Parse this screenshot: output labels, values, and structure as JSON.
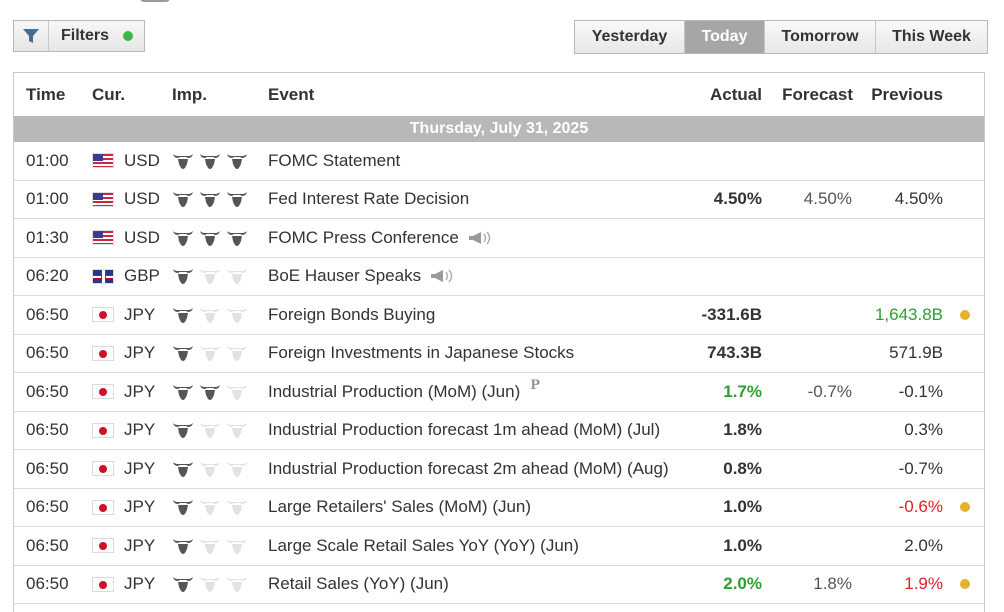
{
  "filters": {
    "label": "Filters",
    "active_color": "#3cb84a"
  },
  "tabs": [
    {
      "label": "Yesterday",
      "active": false
    },
    {
      "label": "Today",
      "active": true
    },
    {
      "label": "Tomorrow",
      "active": false
    },
    {
      "label": "This Week",
      "active": false
    }
  ],
  "columns": {
    "time": "Time",
    "currency": "Cur.",
    "importance": "Imp.",
    "event": "Event",
    "actual": "Actual",
    "forecast": "Forecast",
    "previous": "Previous"
  },
  "date_label": "Thursday, July 31, 2025",
  "colors": {
    "positive": "#2ca02c",
    "negative": "#e0202a",
    "alert_dot": "#e6b22e",
    "header_bar": "#b8b8b8"
  },
  "events": [
    {
      "time": "01:00",
      "currency": "USD",
      "flag": "us",
      "importance": 3,
      "event": "FOMC Statement",
      "icon": "",
      "actual": "",
      "actual_color": "",
      "forecast": "",
      "previous": "",
      "previous_color": "",
      "alert": false
    },
    {
      "time": "01:00",
      "currency": "USD",
      "flag": "us",
      "importance": 3,
      "event": "Fed Interest Rate Decision",
      "icon": "",
      "actual": "4.50%",
      "actual_color": "",
      "forecast": "4.50%",
      "previous": "4.50%",
      "previous_color": "",
      "alert": false
    },
    {
      "time": "01:30",
      "currency": "USD",
      "flag": "us",
      "importance": 3,
      "event": "FOMC Press Conference",
      "icon": "speaker-icon",
      "actual": "",
      "actual_color": "",
      "forecast": "",
      "previous": "",
      "previous_color": "",
      "alert": false
    },
    {
      "time": "06:20",
      "currency": "GBP",
      "flag": "gb",
      "importance": 1,
      "event": "BoE Hauser Speaks",
      "icon": "speaker-icon",
      "actual": "",
      "actual_color": "",
      "forecast": "",
      "previous": "",
      "previous_color": "",
      "alert": false
    },
    {
      "time": "06:50",
      "currency": "JPY",
      "flag": "jp",
      "importance": 1,
      "event": "Foreign Bonds Buying",
      "icon": "",
      "actual": "-331.6B",
      "actual_color": "",
      "forecast": "",
      "previous": "1,643.8B",
      "previous_color": "green",
      "alert": true
    },
    {
      "time": "06:50",
      "currency": "JPY",
      "flag": "jp",
      "importance": 1,
      "event": "Foreign Investments in Japanese Stocks",
      "icon": "",
      "actual": "743.3B",
      "actual_color": "",
      "forecast": "",
      "previous": "571.9B",
      "previous_color": "",
      "alert": false
    },
    {
      "time": "06:50",
      "currency": "JPY",
      "flag": "jp",
      "importance": 2,
      "event": "Industrial Production (MoM) (Jun)",
      "icon": "preliminary-icon",
      "actual": "1.7%",
      "actual_color": "green",
      "forecast": "-0.7%",
      "previous": "-0.1%",
      "previous_color": "",
      "alert": false
    },
    {
      "time": "06:50",
      "currency": "JPY",
      "flag": "jp",
      "importance": 1,
      "event": "Industrial Production forecast 1m ahead (MoM) (Jul)",
      "icon": "",
      "actual": "1.8%",
      "actual_color": "",
      "forecast": "",
      "previous": "0.3%",
      "previous_color": "",
      "alert": false
    },
    {
      "time": "06:50",
      "currency": "JPY",
      "flag": "jp",
      "importance": 1,
      "event": "Industrial Production forecast 2m ahead (MoM) (Aug)",
      "icon": "",
      "actual": "0.8%",
      "actual_color": "",
      "forecast": "",
      "previous": "-0.7%",
      "previous_color": "",
      "alert": false
    },
    {
      "time": "06:50",
      "currency": "JPY",
      "flag": "jp",
      "importance": 1,
      "event": "Large Retailers' Sales (MoM) (Jun)",
      "icon": "",
      "actual": "1.0%",
      "actual_color": "",
      "forecast": "",
      "previous": "-0.6%",
      "previous_color": "red",
      "alert": true
    },
    {
      "time": "06:50",
      "currency": "JPY",
      "flag": "jp",
      "importance": 1,
      "event": "Large Scale Retail Sales YoY (YoY) (Jun)",
      "icon": "",
      "actual": "1.0%",
      "actual_color": "",
      "forecast": "",
      "previous": "2.0%",
      "previous_color": "",
      "alert": false
    },
    {
      "time": "06:50",
      "currency": "JPY",
      "flag": "jp",
      "importance": 1,
      "event": "Retail Sales (YoY) (Jun)",
      "icon": "",
      "actual": "2.0%",
      "actual_color": "green",
      "forecast": "1.8%",
      "previous": "1.9%",
      "previous_color": "red",
      "alert": true
    }
  ]
}
